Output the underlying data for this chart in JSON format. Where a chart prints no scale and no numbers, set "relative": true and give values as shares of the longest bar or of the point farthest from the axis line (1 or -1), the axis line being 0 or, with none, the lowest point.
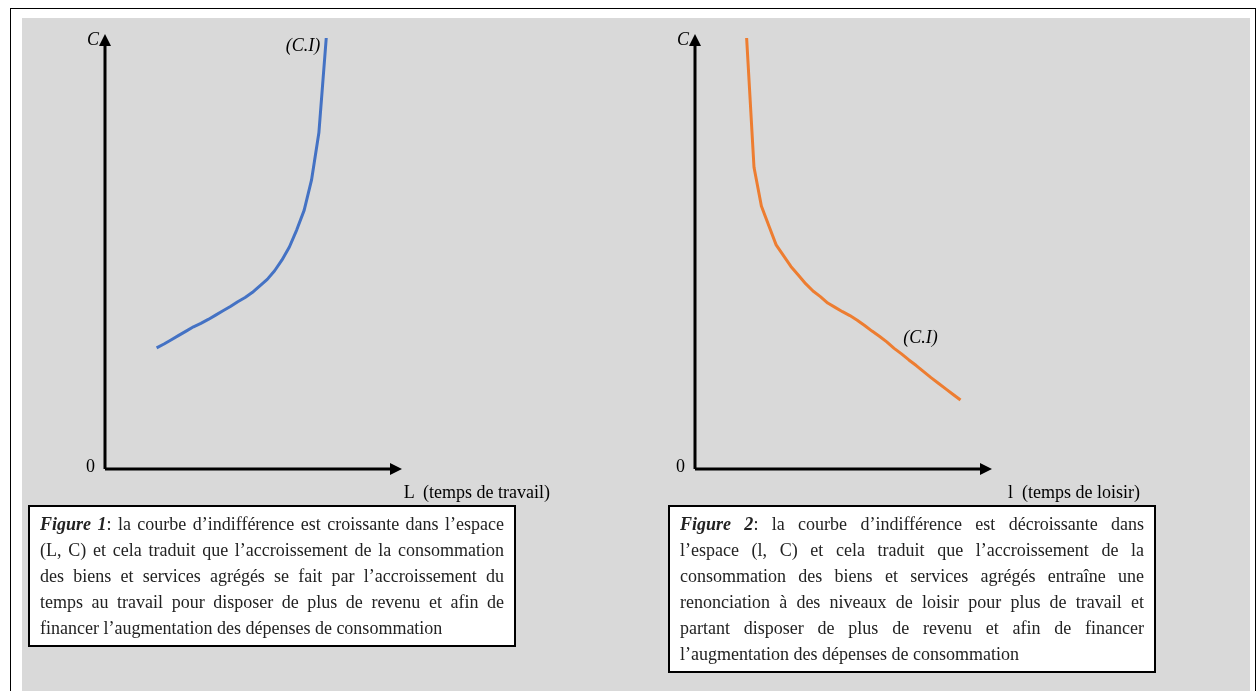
{
  "chart_data": [
    {
      "type": "line",
      "relative": true,
      "legend": false,
      "marker": "none",
      "line_style": "solid",
      "ylabel": "C",
      "xlabel": "L  (temps de travail)",
      "categories": [
        null,
        null,
        null,
        null,
        null,
        null,
        null,
        null,
        null,
        null,
        null,
        null,
        null,
        null,
        null,
        null,
        null,
        null,
        null,
        null,
        null,
        null,
        null,
        null,
        null,
        null,
        null,
        null,
        null,
        null,
        null,
        null,
        null,
        null,
        null,
        null,
        null,
        null,
        null,
        null,
        null
      ],
      "series": [
        {
          "name": "(C.I)",
          "color": "#4472c4",
          "values": [
            null,
            null,
            null,
            null,
            null,
            null,
            null,
            0.281,
            0.29,
            0.3,
            0.31,
            0.32,
            0.33,
            0.338,
            0.347,
            0.357,
            0.367,
            0.377,
            0.388,
            0.398,
            0.41,
            0.425,
            0.44,
            0.46,
            0.485,
            0.515,
            0.555,
            0.6,
            0.67,
            0.78,
            1,
            null,
            null,
            null,
            null,
            null,
            null,
            null,
            null,
            null,
            null
          ]
        }
      ],
      "annotations": [
        "0",
        "Figure 1: la courbe d’indifférence est croissante dans l’espace (L, C) et cela traduit que l’accroissement de la consommation des biens et services agrégés se fait par l’accroissement du temps au travail pour disposer de plus de revenu et afin de financer l’augmentation des dépenses de consommation"
      ]
    },
    {
      "type": "line",
      "relative": true,
      "legend": false,
      "marker": "none",
      "line_style": "solid",
      "ylabel": "C",
      "xlabel": "l  (temps de loisir)",
      "categories": [
        null,
        null,
        null,
        null,
        null,
        null,
        null,
        null,
        null,
        null,
        null,
        null,
        null,
        null,
        null,
        null,
        null,
        null,
        null,
        null,
        null,
        null,
        null,
        null,
        null,
        null,
        null,
        null,
        null,
        null,
        null,
        null,
        null,
        null,
        null,
        null,
        null,
        null,
        null,
        null,
        null
      ],
      "series": [
        {
          "name": "(C.I)",
          "color": "#ed7d31",
          "values": [
            null,
            null,
            null,
            null,
            null,
            null,
            null,
            1,
            0.7,
            0.61,
            0.565,
            0.52,
            0.495,
            0.47,
            0.45,
            0.43,
            0.413,
            0.4,
            0.385,
            0.375,
            0.365,
            0.356,
            0.345,
            0.333,
            0.32,
            0.308,
            0.295,
            0.28,
            0.267,
            0.253,
            0.24,
            0.226,
            0.212,
            0.199,
            0.186,
            0.173,
            0.16,
            null,
            null,
            null,
            null
          ]
        }
      ],
      "annotations": [
        "0",
        "Figure 2: la courbe d’indifférence est décroissante dans l’espace (l, C) et cela traduit que l’accroissement de la consommation des biens et services agrégés entraîne une renonciation à des niveaux de loisir pour plus de travail et partant disposer de plus de revenu et afin de financer l’augmentation des dépenses de consommation"
      ]
    }
  ]
}
